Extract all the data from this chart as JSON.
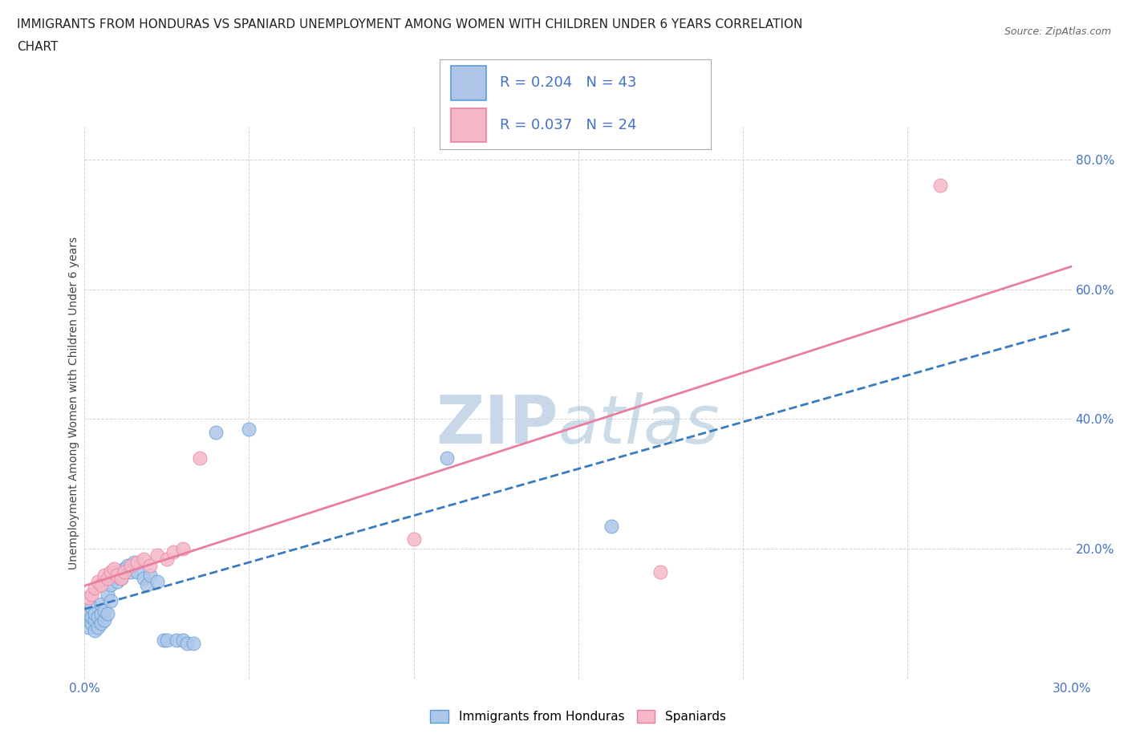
{
  "title_line1": "IMMIGRANTS FROM HONDURAS VS SPANIARD UNEMPLOYMENT AMONG WOMEN WITH CHILDREN UNDER 6 YEARS CORRELATION",
  "title_line2": "CHART",
  "source": "Source: ZipAtlas.com",
  "ylabel": "Unemployment Among Women with Children Under 6 years",
  "xlim": [
    0.0,
    0.3
  ],
  "ylim": [
    0.0,
    0.85
  ],
  "xticks": [
    0.0,
    0.05,
    0.1,
    0.15,
    0.2,
    0.25,
    0.3
  ],
  "xticklabels": [
    "0.0%",
    "",
    "",
    "",
    "",
    "",
    "30.0%"
  ],
  "yticks": [
    0.0,
    0.2,
    0.4,
    0.6,
    0.8
  ],
  "yticklabels": [
    "",
    "20.0%",
    "40.0%",
    "60.0%",
    "80.0%"
  ],
  "R_blue": 0.204,
  "N_blue": 43,
  "R_pink": 0.037,
  "N_pink": 24,
  "color_blue": "#aec6e8",
  "color_pink": "#f5b8c8",
  "edge_blue": "#5b9bd5",
  "edge_pink": "#e87fa0",
  "line_blue_color": "#3a7abf",
  "line_pink_color": "#e87fa0",
  "watermark_zip_color": "#c8d8e8",
  "watermark_atlas_color": "#b0c8dc",
  "blue_scatter_x": [
    0.001,
    0.001,
    0.001,
    0.002,
    0.002,
    0.002,
    0.003,
    0.003,
    0.003,
    0.004,
    0.004,
    0.005,
    0.005,
    0.005,
    0.006,
    0.006,
    0.007,
    0.007,
    0.008,
    0.008,
    0.009,
    0.01,
    0.01,
    0.011,
    0.012,
    0.013,
    0.014,
    0.015,
    0.016,
    0.018,
    0.019,
    0.02,
    0.022,
    0.024,
    0.025,
    0.028,
    0.03,
    0.031,
    0.033,
    0.04,
    0.05,
    0.11,
    0.16
  ],
  "blue_scatter_y": [
    0.08,
    0.09,
    0.1,
    0.085,
    0.095,
    0.11,
    0.075,
    0.09,
    0.1,
    0.08,
    0.095,
    0.085,
    0.1,
    0.115,
    0.09,
    0.105,
    0.1,
    0.13,
    0.12,
    0.145,
    0.16,
    0.15,
    0.165,
    0.155,
    0.17,
    0.175,
    0.165,
    0.18,
    0.165,
    0.155,
    0.145,
    0.16,
    0.15,
    0.06,
    0.06,
    0.06,
    0.06,
    0.055,
    0.055,
    0.38,
    0.385,
    0.34,
    0.235
  ],
  "pink_scatter_x": [
    0.001,
    0.002,
    0.003,
    0.004,
    0.005,
    0.006,
    0.007,
    0.008,
    0.009,
    0.01,
    0.011,
    0.012,
    0.014,
    0.016,
    0.018,
    0.02,
    0.022,
    0.025,
    0.027,
    0.03,
    0.035,
    0.1,
    0.175,
    0.26
  ],
  "pink_scatter_y": [
    0.125,
    0.13,
    0.14,
    0.15,
    0.145,
    0.16,
    0.155,
    0.165,
    0.17,
    0.16,
    0.155,
    0.165,
    0.175,
    0.18,
    0.185,
    0.175,
    0.19,
    0.185,
    0.195,
    0.2,
    0.34,
    0.215,
    0.165,
    0.76
  ]
}
